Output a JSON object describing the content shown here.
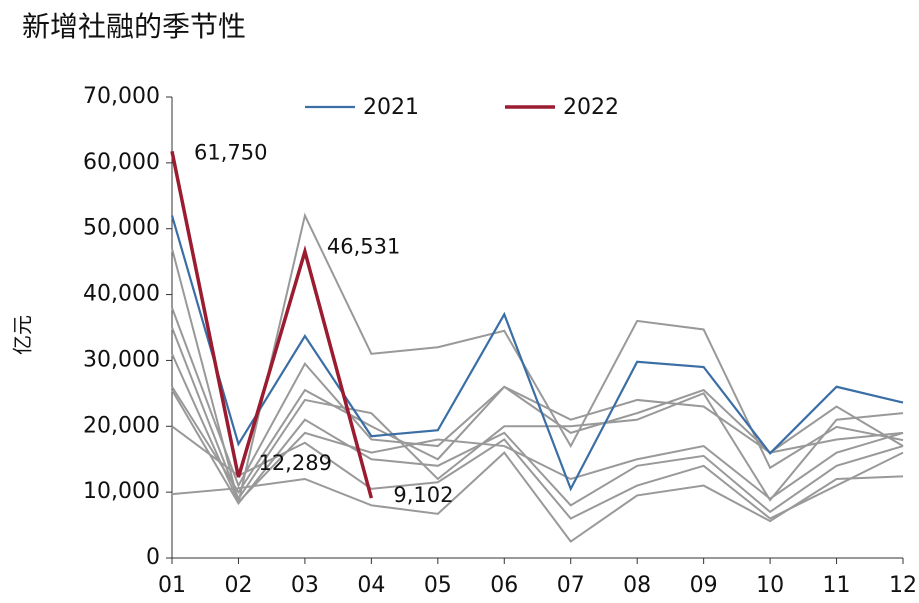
{
  "chart_data": {
    "type": "line",
    "title": "新增社融的季节性",
    "y_label": "亿元",
    "categories": [
      "01",
      "02",
      "03",
      "04",
      "05",
      "06",
      "07",
      "08",
      "09",
      "10",
      "11",
      "12"
    ],
    "ylim": [
      0,
      70000
    ],
    "yticks": [
      0,
      {
        "value": 10000,
        "label": "10,000"
      },
      {
        "value": 20000,
        "label": "20,000"
      },
      {
        "value": 30000,
        "label": "30,000"
      },
      {
        "value": 40000,
        "label": "40,000"
      },
      {
        "value": 50000,
        "label": "50,000"
      },
      {
        "value": 60000,
        "label": "60,000"
      },
      {
        "value": 70000,
        "label": "70,000"
      }
    ],
    "series": [
      {
        "color": "#999999",
        "values": [
          47000,
          8500,
          52000,
          31000,
          32000,
          34500,
          17000,
          36000,
          34700,
          13700,
          19900,
          17900
        ]
      },
      {
        "color": "#999999",
        "values": [
          38000,
          11000,
          29500,
          18000,
          17000,
          26000,
          21000,
          24000,
          23000,
          16000,
          23000,
          17000
        ]
      },
      {
        "color": "#999999",
        "values": [
          35000,
          9000,
          24000,
          22000,
          12000,
          20000,
          20000,
          21000,
          25000,
          8800,
          21000,
          22000
        ]
      },
      {
        "color": "#999999",
        "values": [
          26000,
          10000,
          25500,
          20000,
          15000,
          26000,
          19000,
          22000,
          25500,
          16000,
          18000,
          19000
        ]
      },
      {
        "color": "#999999",
        "values": [
          31000,
          8500,
          19000,
          16000,
          18000,
          17000,
          12000,
          15000,
          17000,
          9000,
          16000,
          19000
        ]
      },
      {
        "color": "#999999",
        "values": [
          25500,
          8300,
          21000,
          15000,
          14000,
          19000,
          8000,
          14000,
          15500,
          7000,
          14000,
          17000
        ]
      },
      {
        "color": "#999999",
        "values": [
          20000,
          12500,
          17500,
          10500,
          11500,
          18000,
          6000,
          11000,
          14000,
          6000,
          11000,
          16000
        ]
      },
      {
        "color": "#999999",
        "values": [
          9700,
          10600,
          12000,
          8000,
          6700,
          16000,
          2500,
          9500,
          11000,
          5600,
          12000,
          12400
        ]
      },
      {
        "name": "2021",
        "color": "#3a6ea5",
        "values": [
          52000,
          17300,
          33700,
          18500,
          19400,
          37000,
          10500,
          29800,
          29000,
          15900,
          26000,
          23600
        ]
      },
      {
        "name": "2022",
        "color": "#9b1b30",
        "values": [
          61750,
          12289,
          46531,
          9102,
          null,
          null,
          null,
          null,
          null,
          null,
          null,
          null
        ],
        "value_labels": [
          "61,750",
          "12,289",
          "46,531",
          "9,102",
          null,
          null,
          null,
          null,
          null,
          null,
          null,
          null
        ]
      }
    ]
  }
}
